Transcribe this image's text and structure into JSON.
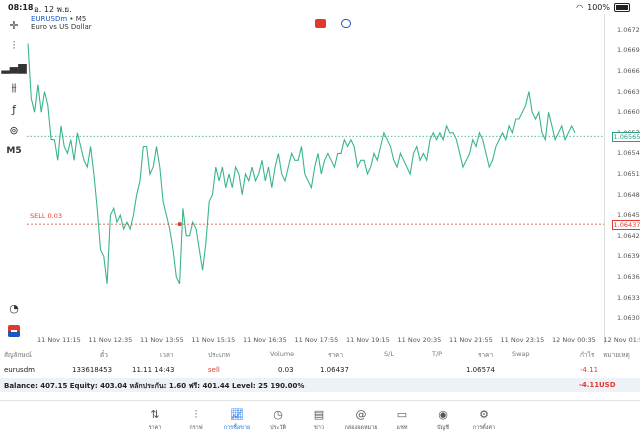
{
  "status_bar": {
    "time": "08:18",
    "date": "อ. 12 พ.ย.",
    "battery": "100%"
  },
  "chart": {
    "symbol": "EURUSDm",
    "timeframe_suffix": "• M5",
    "timeframe": "M5",
    "description": "Euro vs US Dollar",
    "current_price_label": "1.06565",
    "sell_line_label": "SELL 0.03",
    "sell_price_label": "1.06437",
    "price_ticks": [
      "1.06720",
      "1.06690",
      "1.06660",
      "1.06630",
      "1.06600",
      "1.06570",
      "1.06540",
      "1.06510",
      "1.06480",
      "1.06450",
      "1.06420",
      "1.06390",
      "1.06360",
      "1.06330",
      "1.06300"
    ],
    "time_ticks": [
      "11 Nov 11:15",
      "11 Nov 12:35",
      "11 Nov 13:55",
      "11 Nov 15:15",
      "11 Nov 16:35",
      "11 Nov 17:55",
      "11 Nov 19:15",
      "11 Nov 20:35",
      "11 Nov 21:55",
      "11 Nov 23:15",
      "12 Nov 00:35",
      "12 Nov 01:5"
    ],
    "colors": {
      "line": "#3bb58a",
      "sell": "#e03a2f",
      "price": "#2b9c7f"
    }
  },
  "chart_data": {
    "type": "line",
    "ylim": [
      1.0628,
      1.0674
    ],
    "values": [
      1.067,
      1.0662,
      1.066,
      1.0664,
      1.066,
      1.0663,
      1.0661,
      1.0656,
      1.0656,
      1.0653,
      1.0658,
      1.0655,
      1.0654,
      1.0656,
      1.0653,
      1.0657,
      1.0655,
      1.0653,
      1.0652,
      1.0655,
      1.0651,
      1.0646,
      1.064,
      1.0639,
      1.0635,
      1.0645,
      1.0646,
      1.0644,
      1.0645,
      1.0643,
      1.0644,
      1.0643,
      1.0645,
      1.0648,
      1.065,
      1.0655,
      1.0655,
      1.0651,
      1.0652,
      1.0655,
      1.0652,
      1.0647,
      1.0645,
      1.0643,
      1.064,
      1.0636,
      1.0635,
      1.0646,
      1.0642,
      1.0642,
      1.0644,
      1.0643,
      1.064,
      1.0637,
      1.0641,
      1.0647,
      1.0648,
      1.0652,
      1.065,
      1.0652,
      1.0649,
      1.0651,
      1.0649,
      1.0652,
      1.0651,
      1.0648,
      1.0651,
      1.065,
      1.0652,
      1.065,
      1.0651,
      1.0653,
      1.065,
      1.0652,
      1.0649,
      1.0652,
      1.0654,
      1.0651,
      1.065,
      1.0652,
      1.0654,
      1.0653,
      1.0653,
      1.0655,
      1.0651,
      1.065,
      1.0649,
      1.0652,
      1.0654,
      1.0651,
      1.0653,
      1.0654,
      1.0653,
      1.0652,
      1.0654,
      1.0654,
      1.0656,
      1.0655,
      1.0656,
      1.0655,
      1.0652,
      1.0653,
      1.0653,
      1.0651,
      1.0652,
      1.0654,
      1.0653,
      1.0655,
      1.0657,
      1.0656,
      1.0655,
      1.0653,
      1.0652,
      1.0654,
      1.0653,
      1.0652,
      1.0651,
      1.0654,
      1.0655,
      1.0653,
      1.0654,
      1.0653,
      1.0656,
      1.0657,
      1.0656,
      1.0657,
      1.0656,
      1.0658,
      1.0657,
      1.0657,
      1.0656,
      1.0654,
      1.0652,
      1.0653,
      1.0654,
      1.0656,
      1.0655,
      1.0657,
      1.0656,
      1.0654,
      1.0652,
      1.0653,
      1.0655,
      1.0656,
      1.0657,
      1.0656,
      1.0658,
      1.0657,
      1.0659,
      1.0659,
      1.066,
      1.0661,
      1.0663,
      1.066,
      1.0659,
      1.066,
      1.0657,
      1.0656,
      1.066,
      1.0658,
      1.0656,
      1.0657,
      1.0658,
      1.0656,
      1.0657,
      1.0658,
      1.0657
    ]
  },
  "table": {
    "headers": [
      "สัญลักษณ์",
      "ตั๋ว",
      "เวลา",
      "ประเภท",
      "Volume",
      "ราคา",
      "S/L",
      "T/P",
      "ราคา",
      "Swap",
      "กำไร",
      "หมายเหตุ"
    ],
    "row": {
      "symbol": "eurusdm",
      "ticket": "133618453",
      "time": "11.11 14:43",
      "type": "sell",
      "volume": "0.03",
      "open_price": "1.06437",
      "sl": "",
      "tp": "",
      "price": "1.06574",
      "swap": "",
      "profit": "-4.11",
      "comment": ""
    },
    "balance_text": "Balance: 407.15 Equity: 403.04 หลักประกัน: 1.60 ฟรี: 401.44 Level: 25 190.00%",
    "total_profit": "-4.11",
    "currency": "USD"
  },
  "nav": [
    {
      "label": "ราคา",
      "icon": "arrows-updown-icon"
    },
    {
      "label": "กราฟ",
      "icon": "candles-icon"
    },
    {
      "label": "การซื้อขาย",
      "icon": "trade-icon",
      "active": true
    },
    {
      "label": "ประวัติ",
      "icon": "history-icon"
    },
    {
      "label": "ข่าว",
      "icon": "news-icon"
    },
    {
      "label": "กล่องจดหมาย",
      "icon": "mailbox-icon"
    },
    {
      "label": "แชท",
      "icon": "chat-icon"
    },
    {
      "label": "บัญชี",
      "icon": "account-icon"
    },
    {
      "label": "การตั้งค่า",
      "icon": "settings-icon"
    }
  ]
}
